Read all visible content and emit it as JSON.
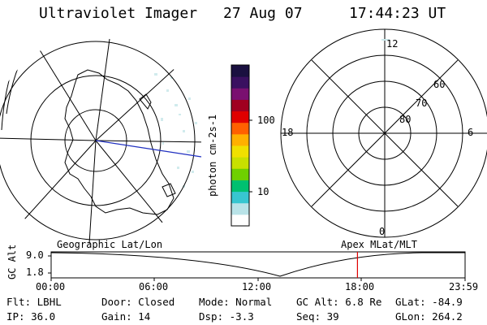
{
  "header": {
    "instrument": "Ultraviolet Imager",
    "date": "27 Aug 07",
    "time": "17:44:23 UT"
  },
  "colorbar": {
    "unit_label": "photon cm-2s-1",
    "ticks": [
      "100",
      "10"
    ],
    "colors": [
      "#ffffff",
      "#b9e3e8",
      "#38c6d0",
      "#00c070",
      "#6fd000",
      "#c8e000",
      "#f0e000",
      "#ffb000",
      "#ff6000",
      "#e00000",
      "#a00020",
      "#7a1070",
      "#3a1060",
      "#1a1040"
    ]
  },
  "polar_plot": {
    "hour_labels": [
      "12",
      "18",
      "6",
      "0"
    ],
    "lat_labels": [
      "60",
      "70",
      "80"
    ]
  },
  "timeline": {
    "left_title": "Geographic Lat/Lon",
    "right_title": "Apex MLat/MLT",
    "axis_title": "GC Alt",
    "y_labels": [
      "9.0",
      "1.8"
    ],
    "x_labels": [
      "00:00",
      "06:00",
      "12:00",
      "18:00",
      "23:59"
    ],
    "current_time_fraction": 0.74,
    "marker_color": "#e00000"
  },
  "footer": {
    "row1": [
      {
        "label": "Flt:",
        "value": "LBHL"
      },
      {
        "label": "Door:",
        "value": "Closed"
      },
      {
        "label": "Mode:",
        "value": "Normal"
      },
      {
        "label": "GC Alt:",
        "value": "6.8 Re"
      },
      {
        "label": "GLat:",
        "value": "-84.9"
      }
    ],
    "row2": [
      {
        "label": "IP:",
        "value": "36.0"
      },
      {
        "label": "Gain:",
        "value": "14"
      },
      {
        "label": "Dsp:",
        "value": "-3.3"
      },
      {
        "label": "Seq:",
        "value": "39"
      },
      {
        "label": "GLon:",
        "value": "264.2"
      }
    ]
  }
}
